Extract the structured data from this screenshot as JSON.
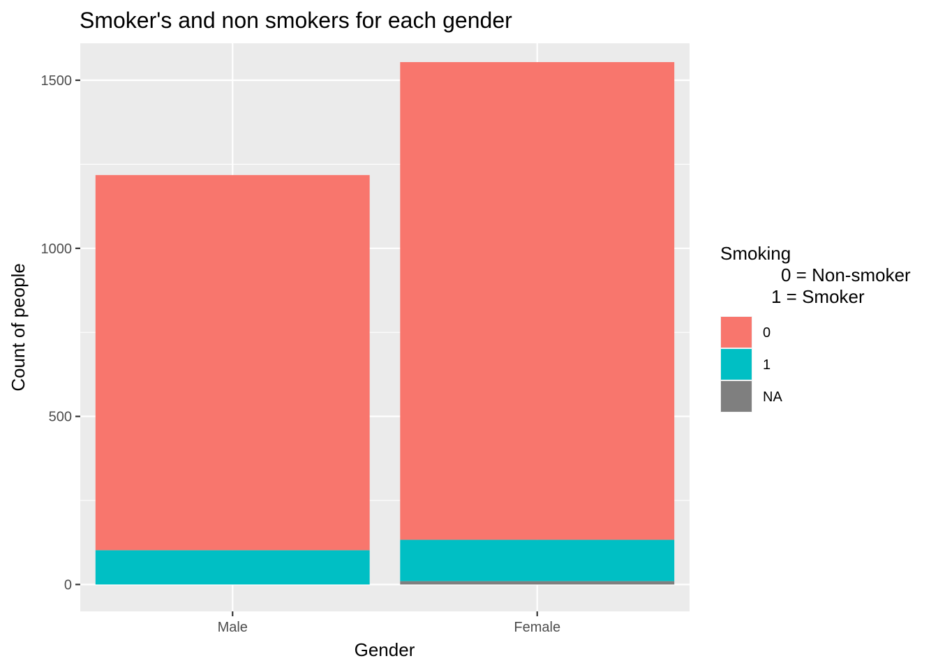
{
  "chart_data": {
    "type": "bar",
    "stacked": true,
    "title": "Smoker's and non smokers for each gender",
    "xlabel": "Gender",
    "ylabel": "Count of people",
    "categories": [
      "Male",
      "Female"
    ],
    "series": [
      {
        "name": "0",
        "values": [
          1116,
          1421
        ],
        "color": "#F8766D"
      },
      {
        "name": "1",
        "values": [
          102,
          123
        ],
        "color": "#00BFC4"
      },
      {
        "name": "NA",
        "values": [
          0,
          10
        ],
        "color": "#7F7F7F"
      }
    ],
    "stack_order_bottom_to_top": [
      "NA",
      "1",
      "0"
    ],
    "ylim": [
      -80,
      1610
    ],
    "yticks": [
      0,
      500,
      1000,
      1500
    ],
    "grid": true,
    "panel_background": "#EBEBEB",
    "gridline_color": "#FFFFFF",
    "legend": {
      "title_lines": [
        "Smoking",
        "0 = Non-smoker",
        "1 = Smoker"
      ],
      "placement": "right"
    }
  }
}
